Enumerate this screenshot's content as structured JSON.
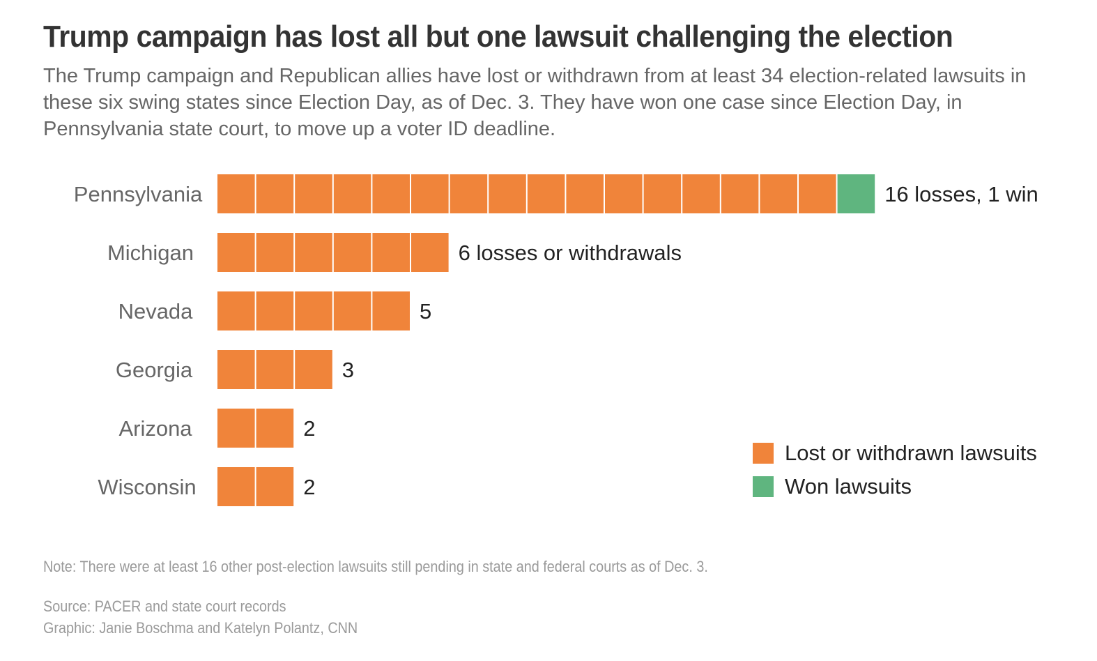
{
  "title": "Trump campaign has lost all but one lawsuit challenging the election",
  "subtitle": "The Trump campaign and Republican allies have lost or withdrawn from at least 34 election-related lawsuits in these six swing states since Election Day, as of Dec. 3. They have won one case since Election Day, in Pennsylvania state court, to move up a voter ID deadline.",
  "chart_data": {
    "type": "bar",
    "orientation": "horizontal",
    "stacked": true,
    "categories": [
      "Pennsylvania",
      "Michigan",
      "Nevada",
      "Georgia",
      "Arizona",
      "Wisconsin"
    ],
    "series": [
      {
        "name": "Lost or withdrawn lawsuits",
        "values": [
          16,
          6,
          5,
          3,
          2,
          2
        ],
        "color": "#f0843a"
      },
      {
        "name": "Won lawsuits",
        "values": [
          1,
          0,
          0,
          0,
          0,
          0
        ],
        "color": "#5fb57f"
      }
    ],
    "data_labels": [
      "16 losses, 1 win",
      "6 losses or withdrawals",
      "5",
      "3",
      "2",
      "2"
    ],
    "legend_position": "bottom-right",
    "grid": false
  },
  "legend": [
    {
      "label": "Lost or withdrawn lawsuits",
      "color": "#f0843a"
    },
    {
      "label": "Won lawsuits",
      "color": "#5fb57f"
    }
  ],
  "note": "Note: There were at least 16 other post-election lawsuits still pending in state and federal courts as of Dec. 3.",
  "source": "Source: PACER and state court records",
  "credit": "Graphic: Janie Boschma and Katelyn Polantz, CNN"
}
